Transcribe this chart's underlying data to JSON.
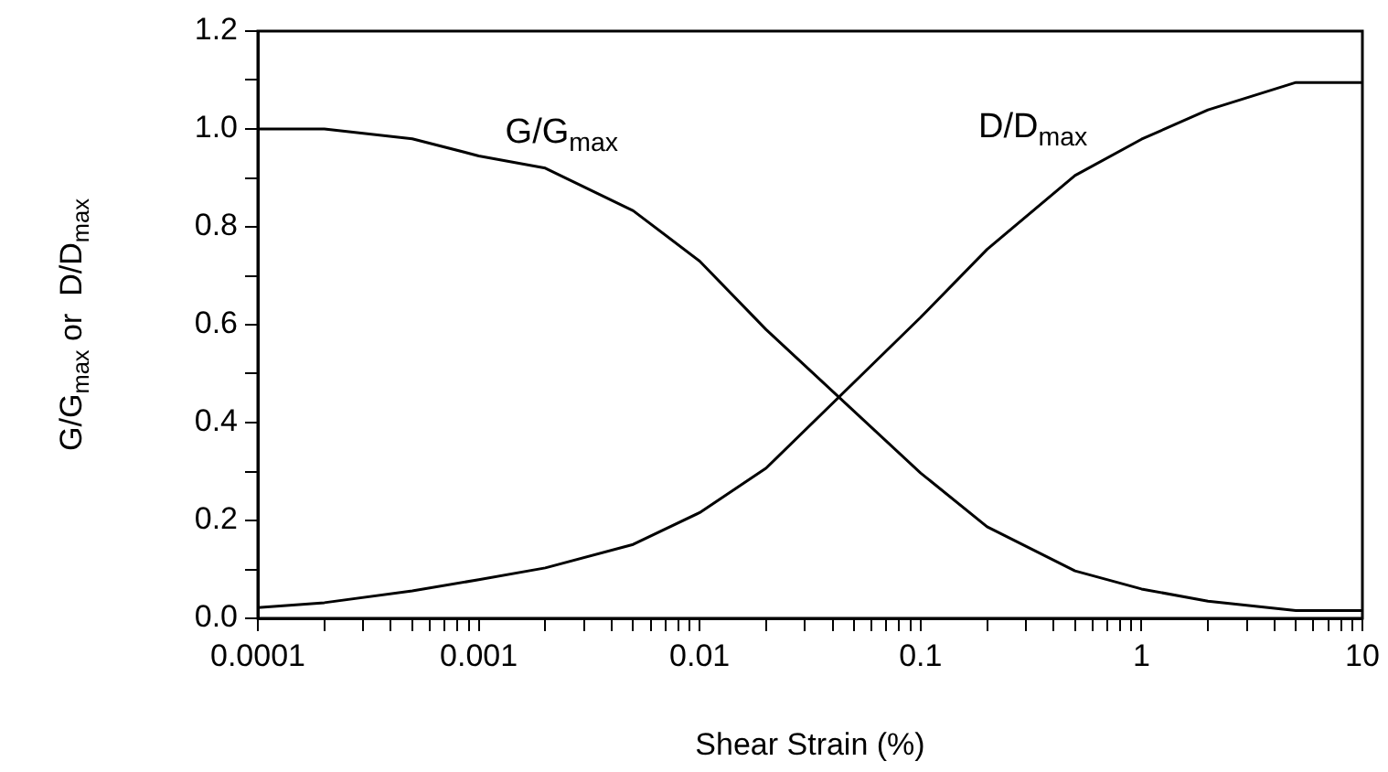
{
  "chart_data": {
    "type": "line",
    "xlabel": "Shear Strain (%)",
    "ylabel": "G/G$_{max}$ or  D/D$_{max}$",
    "log": "x",
    "marker": "none",
    "line_style": "solid",
    "series": [
      {
        "name": "G/G$_{max}$",
        "color": "#000000",
        "x": [
          0.0001,
          0.0002,
          0.0005,
          0.001,
          0.002,
          0.005,
          0.01,
          0.02,
          0.1,
          0.2,
          0.5,
          1,
          2,
          5,
          10
        ],
        "values": [
          1.0,
          1.0,
          0.98,
          0.945,
          0.92,
          0.833,
          0.73,
          0.59,
          0.297,
          0.187,
          0.097,
          0.06,
          0.035,
          0.016,
          0.016
        ]
      },
      {
        "name": "D/D$_{max}$",
        "color": "#000000",
        "x": [
          0.0001,
          0.0002,
          0.0005,
          0.001,
          0.002,
          0.005,
          0.01,
          0.02,
          0.1,
          0.2,
          0.5,
          1,
          2,
          5,
          10
        ],
        "values": [
          0.022,
          0.032,
          0.056,
          0.079,
          0.103,
          0.151,
          0.216,
          0.307,
          0.615,
          0.754,
          0.905,
          0.979,
          1.039,
          1.095,
          1.095
        ]
      }
    ],
    "xlim": [
      0.0001,
      10
    ],
    "xticks": [
      {
        "value": 0.0001,
        "label": "0.0001"
      },
      {
        "value": 0.0002,
        "label": null
      },
      {
        "value": 0.0003,
        "label": null
      },
      {
        "value": 0.0004,
        "label": null
      },
      {
        "value": 0.0005,
        "label": null
      },
      {
        "value": 0.0006,
        "label": null
      },
      {
        "value": 0.0007,
        "label": null
      },
      {
        "value": 0.0008,
        "label": null
      },
      {
        "value": 0.0009,
        "label": null
      },
      {
        "value": 0.001,
        "label": "0.001"
      },
      {
        "value": 0.002,
        "label": null
      },
      {
        "value": 0.003,
        "label": null
      },
      {
        "value": 0.004,
        "label": null
      },
      {
        "value": 0.005,
        "label": null
      },
      {
        "value": 0.006,
        "label": null
      },
      {
        "value": 0.007,
        "label": null
      },
      {
        "value": 0.008,
        "label": null
      },
      {
        "value": 0.009,
        "label": null
      },
      {
        "value": 0.01,
        "label": "0.01"
      },
      {
        "value": 0.02,
        "label": null
      },
      {
        "value": 0.03,
        "label": null
      },
      {
        "value": 0.04,
        "label": null
      },
      {
        "value": 0.05,
        "label": null
      },
      {
        "value": 0.06,
        "label": null
      },
      {
        "value": 0.07,
        "label": null
      },
      {
        "value": 0.08,
        "label": null
      },
      {
        "value": 0.09,
        "label": null
      },
      {
        "value": 0.1,
        "label": "0.1"
      },
      {
        "value": 0.2,
        "label": null
      },
      {
        "value": 0.3,
        "label": null
      },
      {
        "value": 0.4,
        "label": null
      },
      {
        "value": 0.5,
        "label": null
      },
      {
        "value": 0.6,
        "label": null
      },
      {
        "value": 0.7,
        "label": null
      },
      {
        "value": 0.8,
        "label": null
      },
      {
        "value": 0.9,
        "label": null
      },
      1,
      {
        "value": 2,
        "label": null
      },
      {
        "value": 3,
        "label": null
      },
      {
        "value": 4,
        "label": null
      },
      {
        "value": 5,
        "label": null
      },
      {
        "value": 6,
        "label": null
      },
      {
        "value": 7,
        "label": null
      },
      {
        "value": 8,
        "label": null
      },
      {
        "value": 9,
        "label": null
      },
      10
    ],
    "ylim": [
      0,
      1.2
    ],
    "yticks": [
      {
        "value": 0,
        "label": "0.0"
      },
      {
        "value": 0.1,
        "label": null
      },
      {
        "value": 0.2,
        "label": "0.2"
      },
      {
        "value": 0.3,
        "label": null
      },
      {
        "value": 0.4,
        "label": "0.4"
      },
      {
        "value": 0.5,
        "label": null
      },
      {
        "value": 0.6,
        "label": "0.6"
      },
      {
        "value": 0.7,
        "label": null
      },
      {
        "value": 0.8,
        "label": "0.8"
      },
      {
        "value": 0.9,
        "label": null
      },
      {
        "value": 1,
        "label": "1.0"
      },
      {
        "value": 1.1,
        "label": null
      },
      {
        "value": 1.2,
        "label": "1.2"
      }
    ]
  }
}
